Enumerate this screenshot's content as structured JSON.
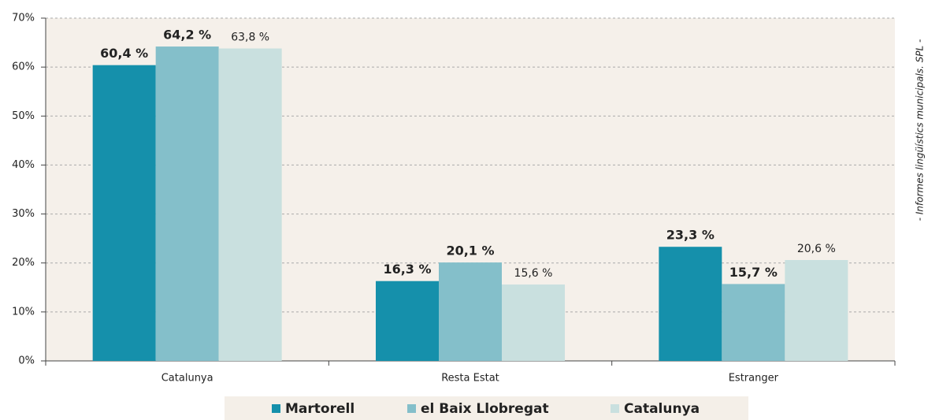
{
  "chart_data": {
    "type": "bar",
    "annotation": "- Informes lingüístics municipals. SPL -",
    "categories": [
      "Catalunya",
      "Resta Estat",
      "Estranger"
    ],
    "series": [
      {
        "name": "Martorell",
        "color": "#1590ab",
        "values": [
          60.4,
          16.3,
          23.3
        ],
        "value_labels": [
          "60,4 %",
          "16,3 %",
          "23,3 %"
        ]
      },
      {
        "name": "el Baix Llobregat",
        "color": "#84bfca",
        "values": [
          64.2,
          20.1,
          15.7
        ],
        "value_labels": [
          "64,2 %",
          "20,1 %",
          "15,7 %"
        ]
      },
      {
        "name": "Catalunya",
        "color": "#c9e0df",
        "values": [
          63.8,
          15.6,
          20.6
        ],
        "value_labels": [
          "63,8 %",
          "15,6 %",
          "20,6 %"
        ]
      }
    ],
    "ylim": [
      0,
      70
    ],
    "yticks": [
      {
        "value": 0,
        "label": "0%"
      },
      {
        "value": 10,
        "label": "10%"
      },
      {
        "value": 20,
        "label": "20%"
      },
      {
        "value": 30,
        "label": "30%"
      },
      {
        "value": 40,
        "label": "40%"
      },
      {
        "value": 50,
        "label": "50%"
      },
      {
        "value": 60,
        "label": "60%"
      },
      {
        "value": 70,
        "label": "70%"
      }
    ],
    "grid": true,
    "legend": "bottom"
  }
}
